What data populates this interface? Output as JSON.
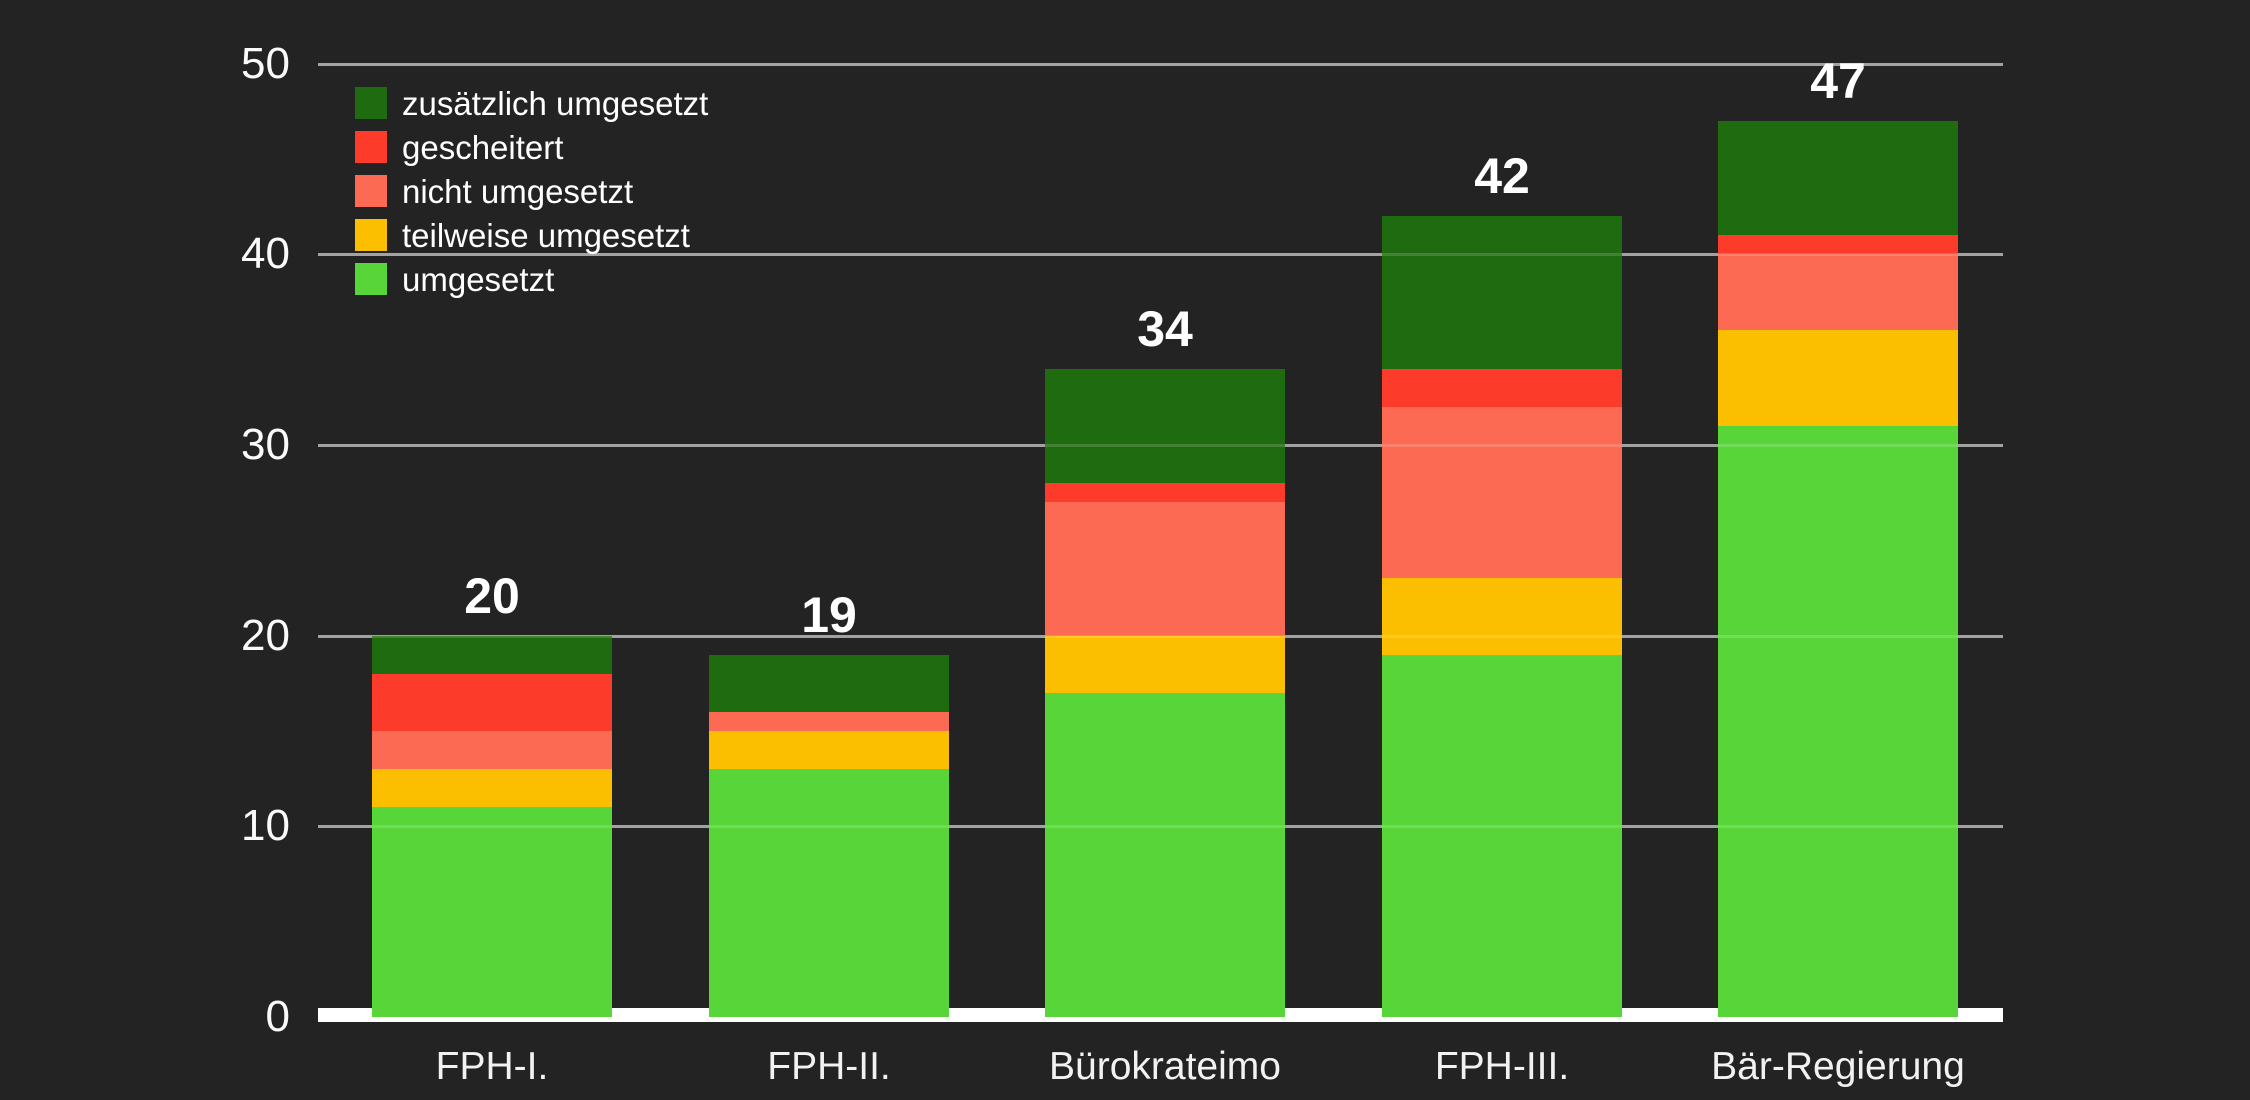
{
  "chart_data": {
    "type": "bar",
    "stacked": true,
    "title": "",
    "categories": [
      "FPH-I.",
      "FPH-II.",
      "Bürokrateimo",
      "FPH-III.",
      "Bär-Regierung"
    ],
    "series": [
      {
        "name": "umgesetzt",
        "color": "#58d639",
        "values": [
          11,
          13,
          17,
          19,
          31
        ]
      },
      {
        "name": "teilweise umgesetzt",
        "color": "#fcbf00",
        "values": [
          2,
          2,
          3,
          4,
          5
        ]
      },
      {
        "name": "nicht umgesetzt",
        "color": "#fc6a53",
        "values": [
          2,
          1,
          7,
          9,
          4
        ]
      },
      {
        "name": "gescheitert",
        "color": "#fc3b2b",
        "values": [
          3,
          0,
          1,
          2,
          1
        ]
      },
      {
        "name": "zusätzlich umgesetzt",
        "color": "#1f6b0f",
        "values": [
          2,
          3,
          6,
          8,
          6
        ]
      }
    ],
    "totals": [
      20,
      19,
      34,
      42,
      47
    ],
    "yticks": [
      0,
      10,
      20,
      30,
      40,
      50
    ],
    "ylim": [
      0,
      50
    ],
    "grid": true,
    "legend_position": "top-left",
    "legend_order": [
      "zusätzlich umgesetzt",
      "gescheitert",
      "nicht umgesetzt",
      "teilweise umgesetzt",
      "umgesetzt"
    ],
    "colors": {
      "background": "#232324",
      "baseline": "#ffffff",
      "gridline": "rgba(255,255,255,0.50)",
      "tick_text": "#fafafa",
      "category_text": "#f2f2f2",
      "total_text": "#ffffff",
      "legend_text": "#ffffff"
    }
  }
}
